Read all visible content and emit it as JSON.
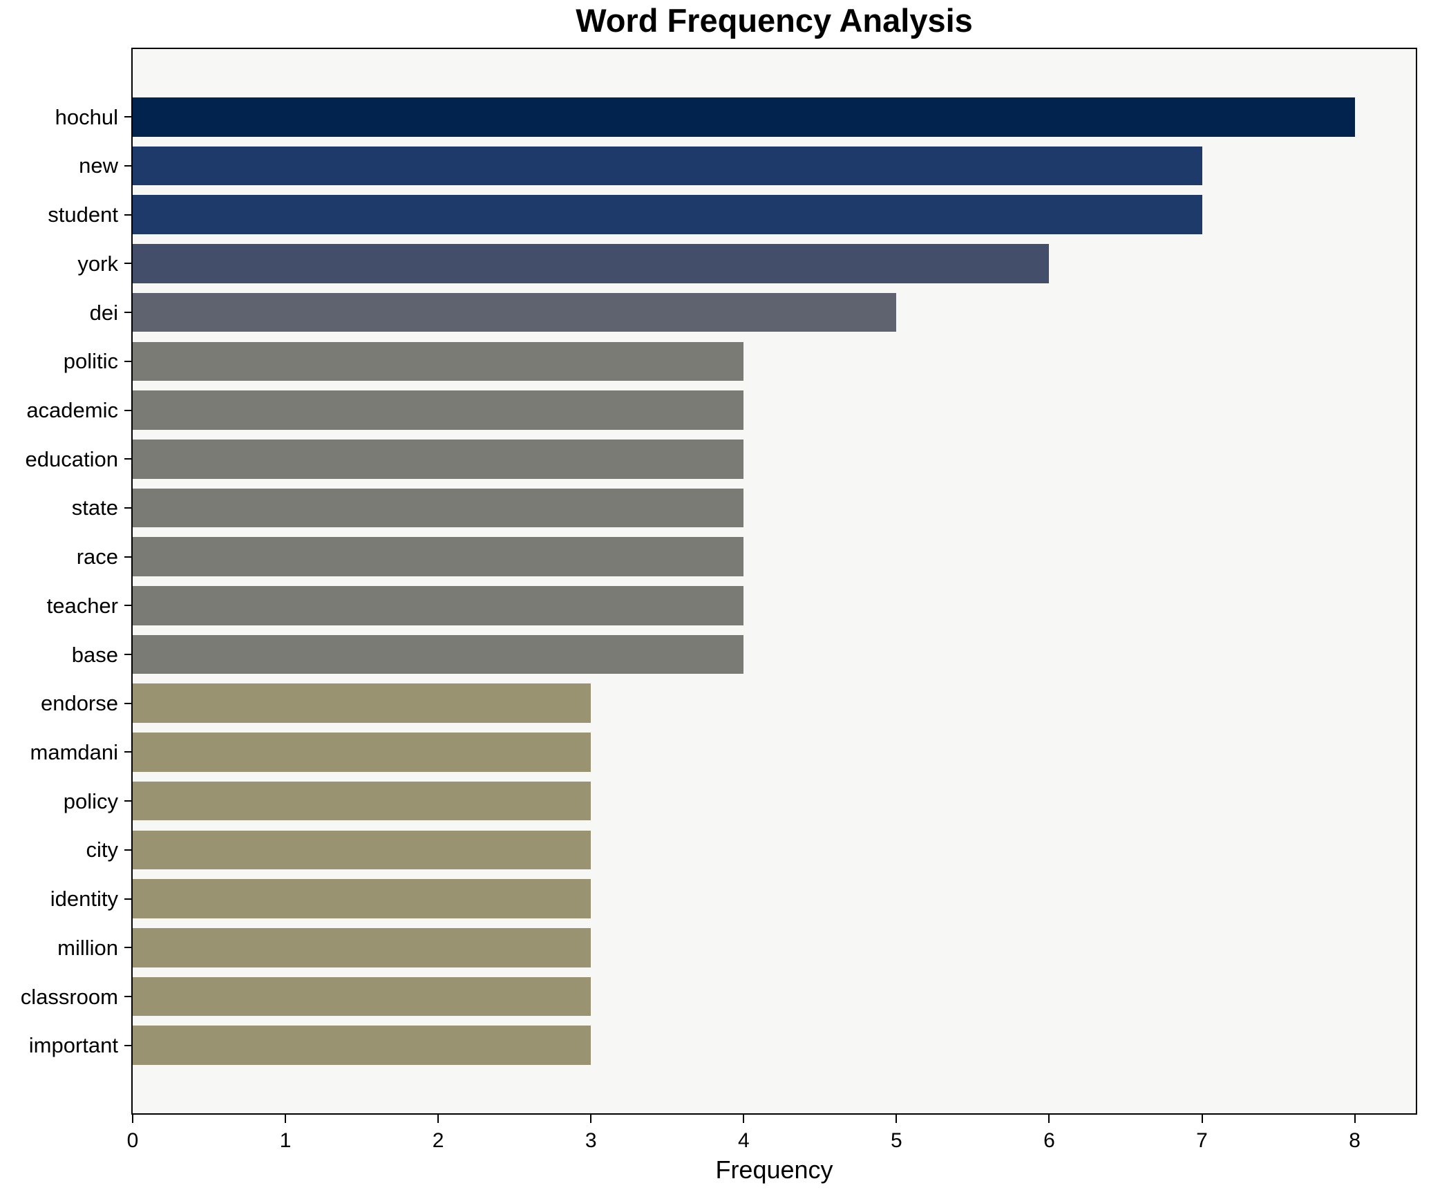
{
  "title": "Word Frequency Analysis",
  "chart_data": {
    "type": "bar",
    "orientation": "horizontal",
    "title": "Word Frequency Analysis",
    "xlabel": "Frequency",
    "ylabel": "",
    "categories": [
      "hochul",
      "new",
      "student",
      "york",
      "dei",
      "politic",
      "academic",
      "education",
      "state",
      "race",
      "teacher",
      "base",
      "endorse",
      "mamdani",
      "policy",
      "city",
      "identity",
      "million",
      "classroom",
      "important"
    ],
    "values": [
      8,
      7,
      7,
      6,
      5,
      4,
      4,
      4,
      4,
      4,
      4,
      4,
      3,
      3,
      3,
      3,
      3,
      3,
      3,
      3
    ],
    "bar_colors": [
      "#02234d",
      "#1d3a6b",
      "#1d3a6b",
      "#434e6a",
      "#5f6370",
      "#7b7b75",
      "#7b7b75",
      "#7b7b75",
      "#7b7b75",
      "#7b7b75",
      "#7b7b75",
      "#7b7b75",
      "#9a9372",
      "#9a9372",
      "#9a9372",
      "#9a9372",
      "#9a9372",
      "#9a9372",
      "#9a9372",
      "#9a9372"
    ],
    "x_ticks": [
      0,
      1,
      2,
      3,
      4,
      5,
      6,
      7,
      8
    ],
    "xlim": [
      0,
      8.4
    ],
    "grid": false,
    "legend": false,
    "plot_background": "#f7f7f6",
    "figure_background": "#ffffff",
    "spine_color": "#000000"
  }
}
